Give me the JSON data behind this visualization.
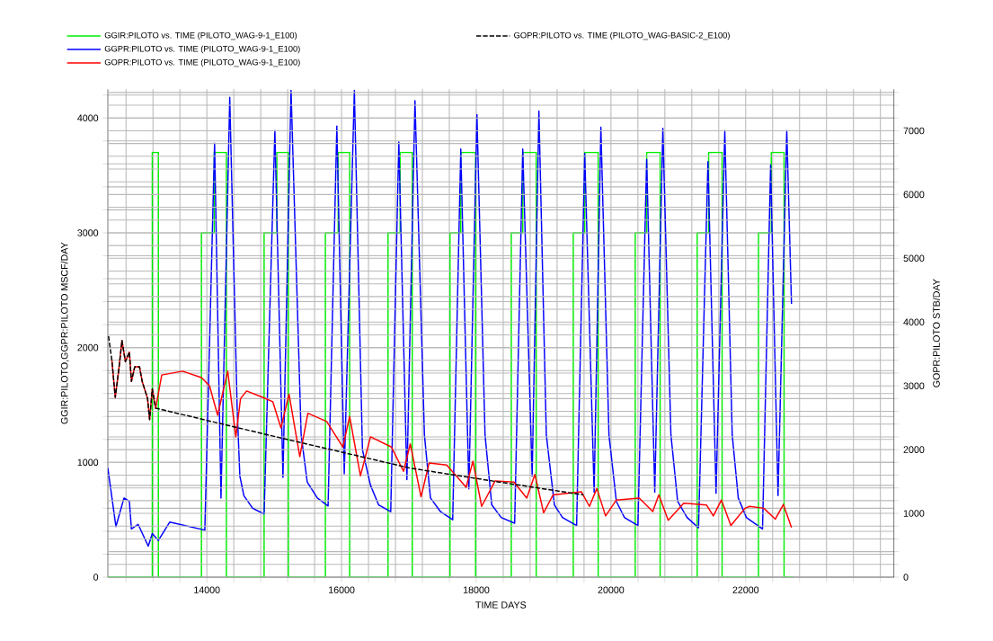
{
  "chart_data": {
    "type": "line",
    "xlabel": "TIME DAYS",
    "ylabel": "GGIR:PILOTO,GGPR:PILOTO MSCF/DAY",
    "y2label": "GOPR:PILOTO STB/DAY",
    "xlim": [
      12530,
      24200
    ],
    "ylim": [
      0,
      4250
    ],
    "y2lim": [
      0,
      7650
    ],
    "xticks": [
      {
        "value": 12800,
        "label": null
      },
      {
        "value": 13200,
        "label": null
      },
      {
        "value": 13600,
        "label": null
      },
      14000,
      {
        "value": 14400,
        "label": null
      },
      {
        "value": 14800,
        "label": null
      },
      {
        "value": 15200,
        "label": null
      },
      {
        "value": 15600,
        "label": null
      },
      16000,
      {
        "value": 16400,
        "label": null
      },
      {
        "value": 16800,
        "label": null
      },
      {
        "value": 17200,
        "label": null
      },
      {
        "value": 17600,
        "label": null
      },
      18000,
      {
        "value": 18400,
        "label": null
      },
      {
        "value": 18800,
        "label": null
      },
      {
        "value": 19200,
        "label": null
      },
      {
        "value": 19600,
        "label": null
      },
      20000,
      {
        "value": 20400,
        "label": null
      },
      {
        "value": 20800,
        "label": null
      },
      {
        "value": 21200,
        "label": null
      },
      {
        "value": 21600,
        "label": null
      },
      22000,
      {
        "value": 22400,
        "label": null
      },
      {
        "value": 22800,
        "label": null
      },
      {
        "value": 23200,
        "label": null
      },
      {
        "value": 23600,
        "label": null
      },
      {
        "value": 24000,
        "label": null
      }
    ],
    "yticks": [
      0,
      {
        "value": 200,
        "label": null
      },
      {
        "value": 400,
        "label": null
      },
      {
        "value": 600,
        "label": null
      },
      {
        "value": 800,
        "label": null
      },
      1000,
      {
        "value": 1200,
        "label": null
      },
      {
        "value": 1400,
        "label": null
      },
      {
        "value": 1600,
        "label": null
      },
      {
        "value": 1800,
        "label": null
      },
      2000,
      {
        "value": 2200,
        "label": null
      },
      {
        "value": 2400,
        "label": null
      },
      {
        "value": 2600,
        "label": null
      },
      {
        "value": 2800,
        "label": null
      },
      3000,
      {
        "value": 3200,
        "label": null
      },
      {
        "value": 3400,
        "label": null
      },
      {
        "value": 3600,
        "label": null
      },
      {
        "value": 3800,
        "label": null
      },
      4000,
      {
        "value": 4200,
        "label": null
      }
    ],
    "y2ticks": [
      0,
      {
        "value": 200,
        "label": null
      },
      {
        "value": 400,
        "label": null
      },
      {
        "value": 600,
        "label": null
      },
      {
        "value": 800,
        "label": null
      },
      1000,
      {
        "value": 1200,
        "label": null
      },
      {
        "value": 1400,
        "label": null
      },
      {
        "value": 1600,
        "label": null
      },
      {
        "value": 1800,
        "label": null
      },
      2000,
      {
        "value": 2200,
        "label": null
      },
      {
        "value": 2400,
        "label": null
      },
      {
        "value": 2600,
        "label": null
      },
      {
        "value": 2800,
        "label": null
      },
      3000,
      {
        "value": 3200,
        "label": null
      },
      {
        "value": 3400,
        "label": null
      },
      {
        "value": 3600,
        "label": null
      },
      {
        "value": 3800,
        "label": null
      },
      4000,
      {
        "value": 4200,
        "label": null
      },
      {
        "value": 4400,
        "label": null
      },
      {
        "value": 4600,
        "label": null
      },
      {
        "value": 4800,
        "label": null
      },
      5000,
      {
        "value": 5200,
        "label": null
      },
      {
        "value": 5400,
        "label": null
      },
      {
        "value": 5600,
        "label": null
      },
      {
        "value": 5800,
        "label": null
      },
      6000,
      {
        "value": 6200,
        "label": null
      },
      {
        "value": 6400,
        "label": null
      },
      {
        "value": 6600,
        "label": null
      },
      {
        "value": 6800,
        "label": null
      },
      7000,
      {
        "value": 7200,
        "label": null
      },
      {
        "value": 7400,
        "label": null
      },
      {
        "value": 7600,
        "label": null
      }
    ],
    "grid": true,
    "legend": "top left",
    "series": [
      {
        "name": "GGIR:PILOTO vs. TIME (PILOTO_WAG-9-1_E100)",
        "type": "step",
        "color": "#00ee00",
        "x": [
          12530,
          13190,
          13280,
          13920,
          14110,
          14290,
          14850,
          15040,
          15210,
          15760,
          15950,
          16120,
          16690,
          16870,
          17050,
          17610,
          17770,
          17990,
          18520,
          18690,
          18890,
          19440,
          19610,
          19810,
          20360,
          20530,
          20730,
          21280,
          21450,
          21650,
          22190,
          22380,
          22570,
          22700
        ],
        "values": [
          0,
          3700,
          0,
          3000,
          3700,
          0,
          3000,
          3700,
          0,
          3000,
          3700,
          0,
          3000,
          3700,
          0,
          3000,
          3700,
          0,
          3000,
          3700,
          0,
          3000,
          3700,
          0,
          3000,
          3700,
          0,
          3000,
          3700,
          0,
          3000,
          3700,
          0,
          0
        ]
      },
      {
        "name": "GGPR:PILOTO vs. TIME (PILOTO_WAG-9-1_E100)",
        "color": "#0000ff",
        "x": [
          12530,
          12650,
          12770,
          12850,
          12880,
          12980,
          13130,
          13190,
          13280,
          13450,
          13970,
          14115,
          14210,
          14340,
          14450,
          14490,
          14550,
          14680,
          14850,
          15010,
          15130,
          15250,
          15400,
          15490,
          15640,
          15800,
          15930,
          16040,
          16190,
          16310,
          16430,
          16550,
          16730,
          16850,
          16970,
          17090,
          17230,
          17320,
          17470,
          17650,
          17770,
          17890,
          18010,
          18130,
          18230,
          18370,
          18570,
          18690,
          18830,
          18930,
          19040,
          19160,
          19280,
          19490,
          19610,
          19750,
          19850,
          19970,
          20080,
          20200,
          20400,
          20530,
          20650,
          20770,
          20890,
          20990,
          21130,
          21300,
          21440,
          21560,
          21690,
          21800,
          21890,
          22010,
          22250,
          22370,
          22480,
          22610,
          22680
        ],
        "values": [
          950,
          440,
          690,
          660,
          420,
          460,
          270,
          380,
          320,
          480,
          410,
          3780,
          690,
          4180,
          1470,
          880,
          710,
          600,
          550,
          3890,
          870,
          4240,
          1240,
          830,
          690,
          620,
          3930,
          900,
          4240,
          1110,
          800,
          630,
          570,
          3790,
          850,
          4150,
          1240,
          690,
          570,
          500,
          3730,
          770,
          4030,
          1240,
          630,
          520,
          470,
          3730,
          880,
          4060,
          1240,
          630,
          520,
          450,
          3690,
          740,
          3920,
          1240,
          660,
          520,
          450,
          3640,
          740,
          3910,
          1240,
          660,
          520,
          430,
          3620,
          730,
          3890,
          1240,
          690,
          520,
          420,
          3590,
          710,
          3890,
          2380
        ]
      },
      {
        "name": "GOPR:PILOTO vs. TIME (PILOTO_WAG-9-1_E100)",
        "color": "#ff0000",
        "axis": "y2",
        "x": [
          12590,
          12640,
          12690,
          12740,
          12790,
          12850,
          12880,
          12930,
          13000,
          13040,
          13120,
          13150,
          13190,
          13240,
          13330,
          13640,
          13920,
          14040,
          14160,
          14310,
          14430,
          14500,
          14590,
          14830,
          14980,
          15100,
          15220,
          15380,
          15500,
          15780,
          16020,
          16120,
          16280,
          16430,
          16740,
          16920,
          17020,
          17180,
          17300,
          17560,
          17850,
          17950,
          18080,
          18280,
          18560,
          18750,
          18870,
          19000,
          19140,
          19560,
          19680,
          19790,
          19920,
          20080,
          20420,
          20620,
          20710,
          20850,
          21080,
          21420,
          21520,
          21640,
          21780,
          21990,
          22060,
          22270,
          22440,
          22560,
          22680
        ],
        "values": [
          3400,
          2820,
          3230,
          3710,
          3380,
          3530,
          3070,
          3300,
          3300,
          3070,
          2800,
          2470,
          2950,
          2650,
          3170,
          3230,
          3130,
          3000,
          2540,
          3230,
          2200,
          2800,
          2920,
          2820,
          2750,
          2340,
          2870,
          1890,
          2570,
          2440,
          2040,
          2520,
          1590,
          2200,
          2040,
          1660,
          2090,
          1260,
          1790,
          1760,
          1410,
          1820,
          1110,
          1510,
          1490,
          1240,
          1610,
          1010,
          1290,
          1340,
          1110,
          1390,
          960,
          1210,
          1240,
          1030,
          1290,
          890,
          1160,
          1130,
          960,
          1210,
          810,
          1080,
          1110,
          1080,
          910,
          1140,
          780
        ]
      },
      {
        "name": "GOPR:PILOTO vs. TIME (PILOTO_WAG-BASIC-2_E100)",
        "color": "#000000",
        "axis": "y2",
        "line_style": "dashed",
        "x": [
          12540,
          12590,
          12640,
          12690,
          12740,
          12790,
          12850,
          12880,
          12930,
          13000,
          13040,
          13120,
          13150,
          13190,
          13240,
          15070,
          17020,
          18230,
          19590
        ],
        "values": [
          3780,
          3400,
          2820,
          3230,
          3710,
          3380,
          3530,
          3070,
          3300,
          3300,
          3070,
          2800,
          2470,
          2950,
          2650,
          2190,
          1710,
          1510,
          1290
        ]
      }
    ]
  }
}
